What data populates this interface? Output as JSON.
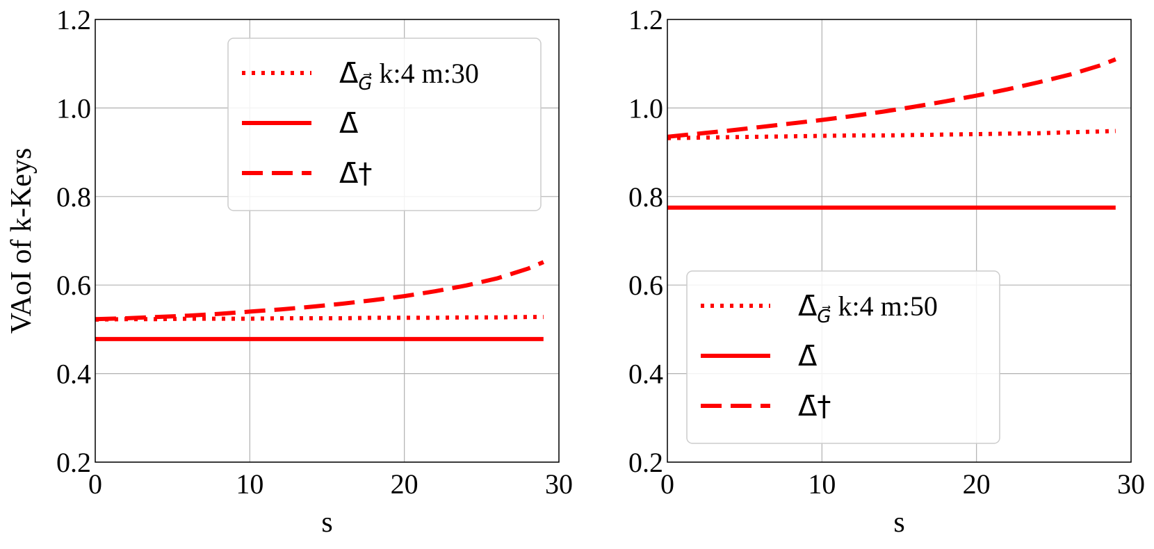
{
  "chart_data": [
    {
      "type": "line",
      "xlabel": "s",
      "ylabel": "VAoI of k-Keys",
      "xlim": [
        0,
        30
      ],
      "ylim": [
        0.2,
        1.2
      ],
      "xticks": [
        "0",
        "10",
        "20",
        "30"
      ],
      "yticks": [
        "0.2",
        "0.4",
        "0.6",
        "0.8",
        "1.0",
        "1.2"
      ],
      "grid": true,
      "legend_position": "upper-right",
      "x": [
        0,
        2,
        4,
        6,
        8,
        10,
        12,
        14,
        16,
        18,
        20,
        22,
        24,
        26,
        28,
        29
      ],
      "series": [
        {
          "legend": "k:4 m:30",
          "symbol": "Δ̄",
          "subscript": "G⃗",
          "style": "dotted",
          "color": "#ff0000",
          "values": [
            0.522,
            0.523,
            0.523,
            0.524,
            0.524,
            0.524,
            0.525,
            0.525,
            0.525,
            0.526,
            0.526,
            0.526,
            0.527,
            0.527,
            0.528,
            0.528
          ]
        },
        {
          "legend": "",
          "symbol": "Δ̄",
          "subscript": "",
          "style": "solid",
          "color": "#ff0000",
          "values": [
            0.478,
            0.478,
            0.478,
            0.478,
            0.478,
            0.478,
            0.478,
            0.478,
            0.478,
            0.478,
            0.478,
            0.478,
            0.478,
            0.478,
            0.478,
            0.478
          ]
        },
        {
          "legend": "",
          "symbol": "Δ̄†",
          "subscript": "",
          "style": "dashed",
          "color": "#ff0000",
          "values": [
            0.523,
            0.525,
            0.528,
            0.531,
            0.535,
            0.54,
            0.545,
            0.551,
            0.558,
            0.566,
            0.575,
            0.586,
            0.599,
            0.615,
            0.637,
            0.652
          ]
        }
      ]
    },
    {
      "type": "line",
      "xlabel": "s",
      "ylabel": "",
      "xlim": [
        0,
        30
      ],
      "ylim": [
        0.2,
        1.2
      ],
      "xticks": [
        "0",
        "10",
        "20",
        "30"
      ],
      "yticks": [
        "0.2",
        "0.4",
        "0.6",
        "0.8",
        "1.0",
        "1.2"
      ],
      "grid": true,
      "legend_position": "lower-left",
      "x": [
        0,
        2,
        4,
        6,
        8,
        10,
        12,
        14,
        16,
        18,
        20,
        22,
        24,
        26,
        28,
        29
      ],
      "series": [
        {
          "legend": "k:4 m:50",
          "symbol": "Δ̄",
          "subscript": "G⃗",
          "style": "dotted",
          "color": "#ff0000",
          "values": [
            0.932,
            0.933,
            0.934,
            0.935,
            0.936,
            0.937,
            0.938,
            0.938,
            0.939,
            0.94,
            0.941,
            0.942,
            0.943,
            0.945,
            0.947,
            0.948
          ]
        },
        {
          "legend": "",
          "symbol": "Δ̄",
          "subscript": "",
          "style": "solid",
          "color": "#ff0000",
          "values": [
            0.775,
            0.775,
            0.775,
            0.775,
            0.775,
            0.775,
            0.775,
            0.775,
            0.775,
            0.775,
            0.775,
            0.775,
            0.775,
            0.775,
            0.775,
            0.775
          ]
        },
        {
          "legend": "",
          "symbol": "Δ̄†",
          "subscript": "",
          "style": "dashed",
          "color": "#ff0000",
          "values": [
            0.935,
            0.942,
            0.949,
            0.957,
            0.965,
            0.973,
            0.982,
            0.992,
            1.003,
            1.015,
            1.028,
            1.042,
            1.058,
            1.075,
            1.096,
            1.11
          ]
        }
      ]
    }
  ]
}
